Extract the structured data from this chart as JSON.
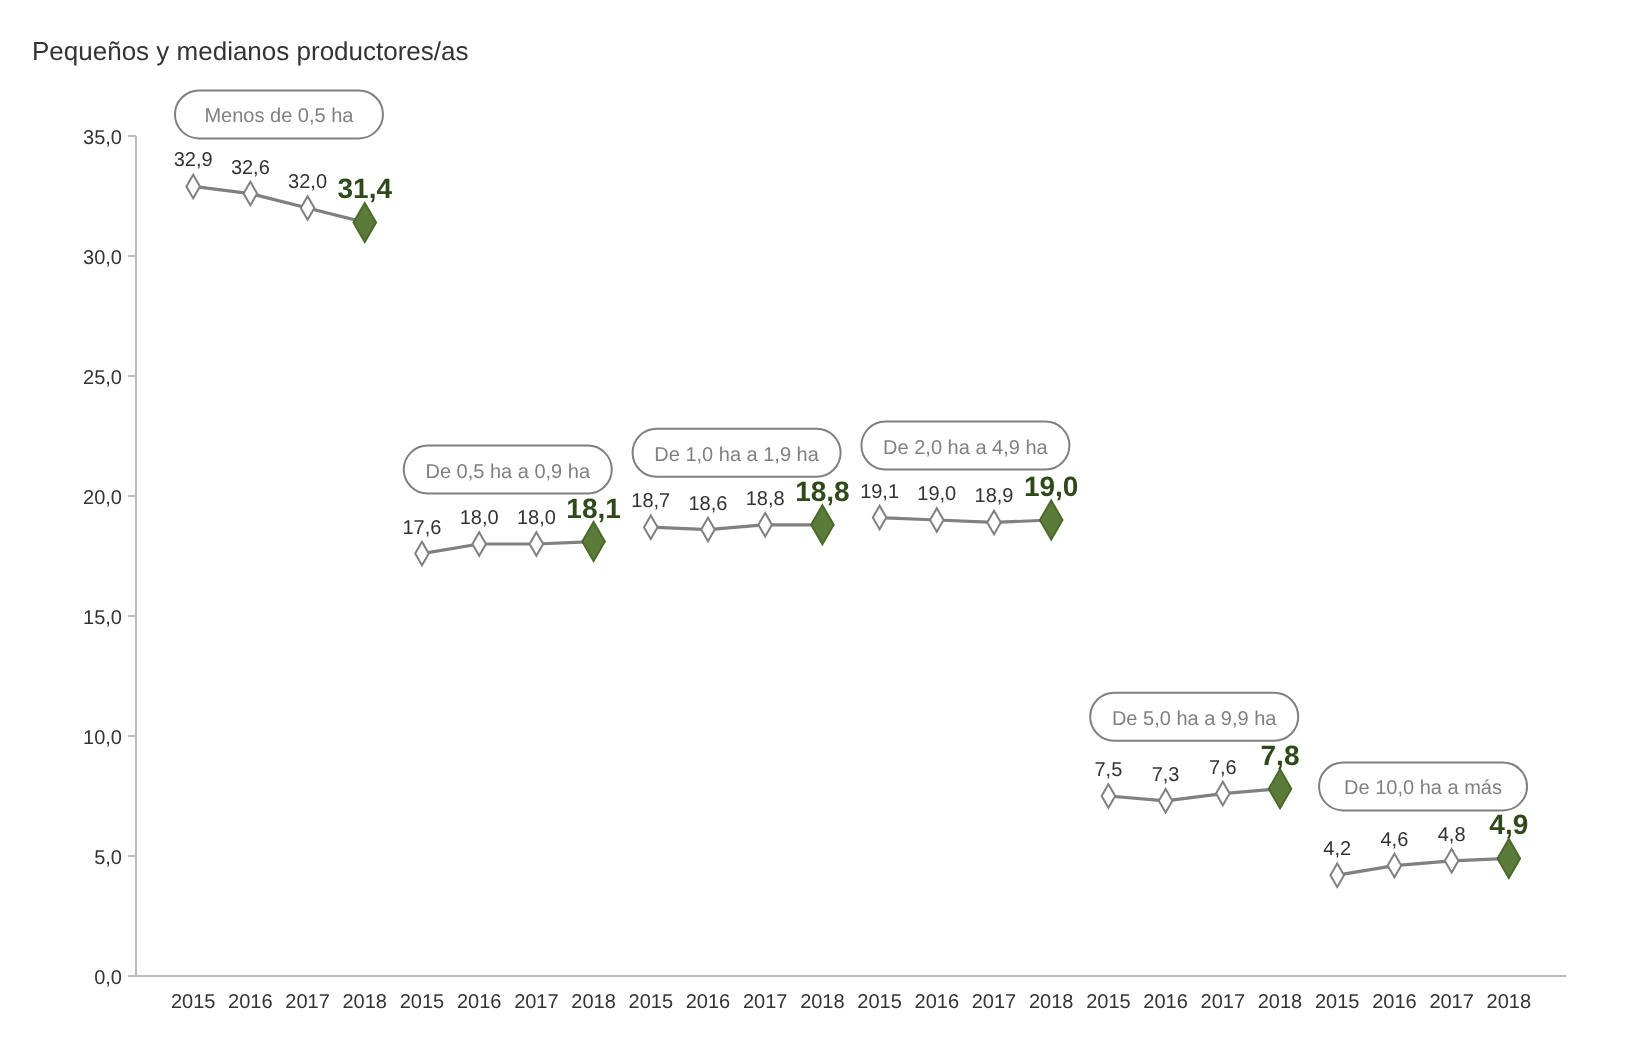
{
  "chart_data": {
    "type": "line",
    "title": "Pequeños y medianos productores/as",
    "categories": [
      "2015",
      "2016",
      "2017",
      "2018",
      "2015",
      "2016",
      "2017",
      "2018",
      "2015",
      "2016",
      "2017",
      "2018",
      "2015",
      "2016",
      "2017",
      "2018",
      "2015",
      "2016",
      "2017",
      "2018",
      "2015",
      "2016",
      "2017",
      "2018"
    ],
    "ylim": [
      0,
      35
    ],
    "yticks": [
      {
        "value": 0,
        "label": "0,0"
      },
      {
        "value": 5,
        "label": "5,0"
      },
      {
        "value": 10,
        "label": "10,0"
      },
      {
        "value": 15,
        "label": "15,0"
      },
      {
        "value": 20,
        "label": "20,0"
      },
      {
        "value": 25,
        "label": "25,0"
      },
      {
        "value": 30,
        "label": "30,0"
      },
      {
        "value": 35,
        "label": "35,0"
      }
    ],
    "series": [
      {
        "name": "Menos de 0,5 ha",
        "color": "#808080",
        "values": [
          32.9,
          32.6,
          32.0,
          31.4,
          null,
          null,
          null,
          null,
          null,
          null,
          null,
          null,
          null,
          null,
          null,
          null,
          null,
          null,
          null,
          null,
          null,
          null,
          null,
          null
        ],
        "value_labels": [
          "32,9",
          "32,6",
          "32,0",
          "31,4",
          null,
          null,
          null,
          null,
          null,
          null,
          null,
          null,
          null,
          null,
          null,
          null,
          null,
          null,
          null,
          null,
          null,
          null,
          null,
          null
        ]
      },
      {
        "name": "De 0,5 ha a 0,9 ha",
        "color": "#808080",
        "values": [
          null,
          null,
          null,
          null,
          17.6,
          18.0,
          18.0,
          18.1,
          null,
          null,
          null,
          null,
          null,
          null,
          null,
          null,
          null,
          null,
          null,
          null,
          null,
          null,
          null,
          null
        ],
        "value_labels": [
          null,
          null,
          null,
          null,
          "17,6",
          "18,0",
          "18,0",
          "18,1",
          null,
          null,
          null,
          null,
          null,
          null,
          null,
          null,
          null,
          null,
          null,
          null,
          null,
          null,
          null,
          null
        ]
      },
      {
        "name": "De 1,0 ha a 1,9 ha",
        "color": "#808080",
        "values": [
          null,
          null,
          null,
          null,
          null,
          null,
          null,
          null,
          18.7,
          18.6,
          18.8,
          18.8,
          null,
          null,
          null,
          null,
          null,
          null,
          null,
          null,
          null,
          null,
          null,
          null
        ],
        "value_labels": [
          null,
          null,
          null,
          null,
          null,
          null,
          null,
          null,
          "18,7",
          "18,6",
          "18,8",
          "18,8",
          null,
          null,
          null,
          null,
          null,
          null,
          null,
          null,
          null,
          null,
          null,
          null
        ]
      },
      {
        "name": "De 2,0 ha a 4,9 ha",
        "color": "#808080",
        "values": [
          null,
          null,
          null,
          null,
          null,
          null,
          null,
          null,
          null,
          null,
          null,
          null,
          19.1,
          19.0,
          18.9,
          19.0,
          null,
          null,
          null,
          null,
          null,
          null,
          null,
          null
        ],
        "value_labels": [
          null,
          null,
          null,
          null,
          null,
          null,
          null,
          null,
          null,
          null,
          null,
          null,
          "19,1",
          "19,0",
          "18,9",
          "19,0",
          null,
          null,
          null,
          null,
          null,
          null,
          null,
          null
        ]
      },
      {
        "name": "De 5,0 ha a 9,9 ha",
        "color": "#808080",
        "values": [
          null,
          null,
          null,
          null,
          null,
          null,
          null,
          null,
          null,
          null,
          null,
          null,
          null,
          null,
          null,
          null,
          7.5,
          7.3,
          7.6,
          7.8,
          null,
          null,
          null,
          null
        ],
        "value_labels": [
          null,
          null,
          null,
          null,
          null,
          null,
          null,
          null,
          null,
          null,
          null,
          null,
          null,
          null,
          null,
          null,
          "7,5",
          "7,3",
          "7,6",
          "7,8",
          null,
          null,
          null,
          null
        ]
      },
      {
        "name": "De 10,0 ha a más",
        "color": "#808080",
        "values": [
          null,
          null,
          null,
          null,
          null,
          null,
          null,
          null,
          null,
          null,
          null,
          null,
          null,
          null,
          null,
          null,
          null,
          null,
          null,
          null,
          4.2,
          4.6,
          4.8,
          4.9
        ],
        "value_labels": [
          null,
          null,
          null,
          null,
          null,
          null,
          null,
          null,
          null,
          null,
          null,
          null,
          null,
          null,
          null,
          null,
          null,
          null,
          null,
          null,
          "4,2",
          "4,6",
          "4,8",
          "4,9"
        ]
      }
    ],
    "marker": "diamond",
    "line_style": "solid",
    "grid": false
  }
}
